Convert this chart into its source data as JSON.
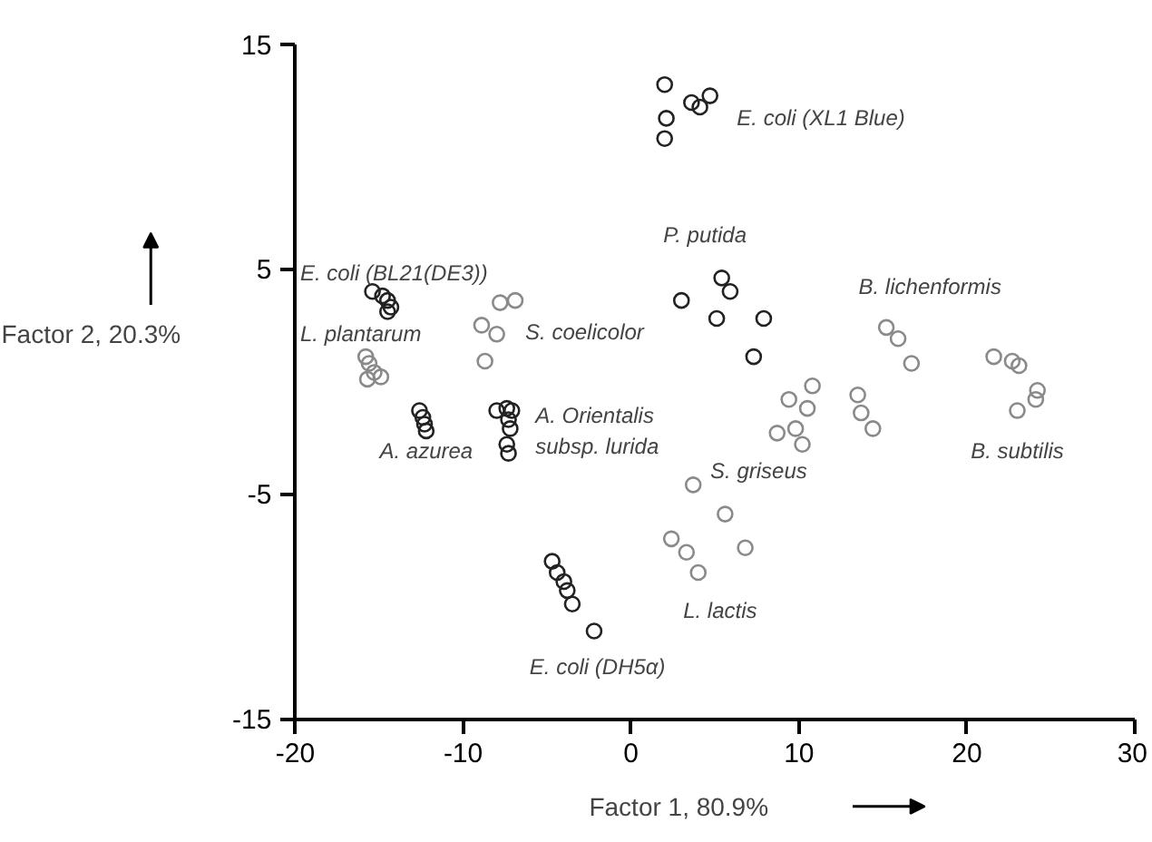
{
  "chart_data": {
    "type": "scatter",
    "xlabel": "Factor 1, 80.9%",
    "ylabel": "Factor 2, 20.3%",
    "xlim": [
      -20,
      30
    ],
    "ylim": [
      -15,
      15
    ],
    "xticks": [
      -20,
      -10,
      0,
      10,
      20,
      30
    ],
    "yticks": [
      -15,
      -5,
      5,
      15
    ],
    "grid": false,
    "marker": "circle",
    "series": [
      {
        "name": "E. coli (XL1 Blue)",
        "color": "#222222",
        "x": [
          2.0,
          3.6,
          4.1,
          4.7,
          2.1,
          2.0
        ],
        "values": [
          13.2,
          12.4,
          12.2,
          12.7,
          11.7,
          10.8
        ]
      },
      {
        "name": "P. putida",
        "color": "#222222",
        "x": [
          5.4,
          5.9,
          3.0,
          5.1,
          7.9,
          7.3
        ],
        "values": [
          4.6,
          4.0,
          3.6,
          2.8,
          2.8,
          1.1
        ]
      },
      {
        "name": "E. coli (BL21(DE3))",
        "color": "#222222",
        "x": [
          -15.4,
          -14.8,
          -14.5,
          -14.3,
          -14.5
        ],
        "values": [
          4.0,
          3.8,
          3.6,
          3.3,
          3.1
        ]
      },
      {
        "name": "L. plantarum",
        "color": "#8a8a8a",
        "x": [
          -15.8,
          -15.6,
          -15.3,
          -14.9,
          -15.7
        ],
        "values": [
          1.1,
          0.8,
          0.4,
          0.2,
          0.1
        ]
      },
      {
        "name": "S. coelicolor",
        "color": "#8a8a8a",
        "x": [
          -6.9,
          -7.8,
          -8.9,
          -8.0,
          -8.7
        ],
        "values": [
          3.6,
          3.5,
          2.5,
          2.1,
          0.9
        ]
      },
      {
        "name": "A. azurea",
        "color": "#222222",
        "x": [
          -12.6,
          -12.4,
          -12.3,
          -12.2
        ],
        "values": [
          -1.3,
          -1.6,
          -1.9,
          -2.2
        ]
      },
      {
        "name": "A. Orientalis\nsubsp. lurida",
        "color": "#222222",
        "x": [
          -8.0,
          -7.4,
          -7.1,
          -7.3,
          -7.2,
          -7.4,
          -7.3
        ],
        "values": [
          -1.3,
          -1.2,
          -1.3,
          -1.7,
          -2.1,
          -2.8,
          -3.2
        ]
      },
      {
        "name": "E. coli (DH5α)",
        "color": "#222222",
        "x": [
          -4.7,
          -4.4,
          -4.0,
          -3.8,
          -3.5,
          -2.2
        ],
        "values": [
          -8.0,
          -8.5,
          -8.9,
          -9.3,
          -9.9,
          -11.1
        ]
      },
      {
        "name": "L. lactis",
        "color": "#8a8a8a",
        "x": [
          3.7,
          5.6,
          2.4,
          3.3,
          6.8,
          4.0
        ],
        "values": [
          -4.6,
          -5.9,
          -7.0,
          -7.6,
          -7.4,
          -8.5
        ]
      },
      {
        "name": "S. griseus",
        "color": "#8a8a8a",
        "x": [
          10.8,
          9.4,
          10.5,
          9.8,
          8.7,
          10.2
        ],
        "values": [
          -0.2,
          -0.8,
          -1.2,
          -2.1,
          -2.3,
          -2.8
        ]
      },
      {
        "name": "B. lichenformis",
        "color": "#8a8a8a",
        "x": [
          15.2,
          15.9,
          16.7,
          13.5,
          13.7,
          14.4
        ],
        "values": [
          2.4,
          1.9,
          0.8,
          -0.6,
          -1.4,
          -2.1
        ]
      },
      {
        "name": "B. subtilis",
        "color": "#8a8a8a",
        "x": [
          21.6,
          22.7,
          23.1,
          24.2,
          24.1,
          23.0
        ],
        "values": [
          1.1,
          0.9,
          0.7,
          -0.4,
          -0.8,
          -1.3
        ]
      }
    ]
  }
}
